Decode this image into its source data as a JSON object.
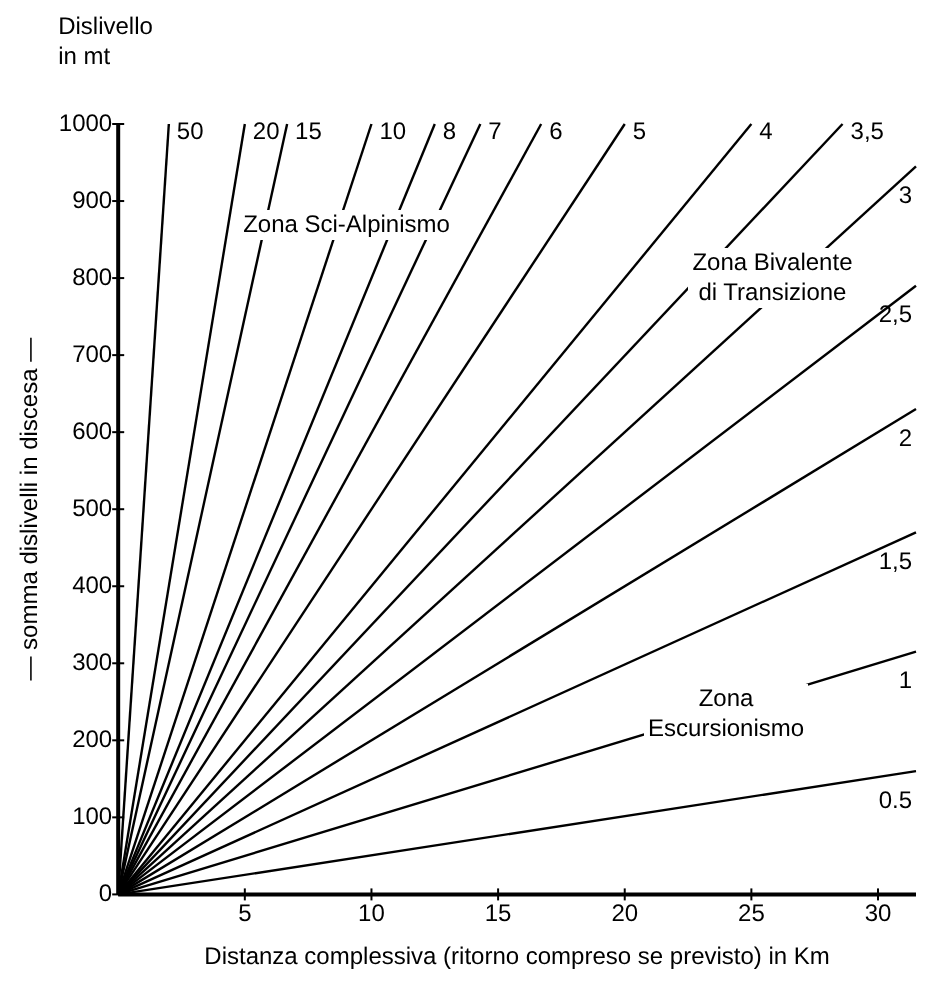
{
  "chart_data": {
    "type": "line",
    "xlabel": "Distanza complessiva (ritorno compreso se previsto) in Km",
    "ylabel": "— somma dislivelli in discesa —",
    "xlim": [
      0,
      31.5
    ],
    "ylim": [
      0,
      1000
    ],
    "xticks": [
      5,
      10,
      15,
      20,
      25,
      30
    ],
    "yticks": [
      0,
      100,
      200,
      300,
      400,
      500,
      600,
      700,
      800,
      900,
      1000
    ],
    "grid": false,
    "legend": false,
    "marker": "none",
    "line_style": "solid",
    "annotations": [
      "Dislivello\nin mt",
      {
        "text": "Zona Sci-Alpinismo",
        "x": 9,
        "y": 870
      },
      "Zona Bivalente\ndi Transizione",
      {
        "text": "Zona\nEscursionismo",
        "x": 24,
        "y": 235
      }
    ],
    "series": [
      {
        "name": "50",
        "color": "#000000",
        "x": [
          0,
          2
        ],
        "values": [
          0,
          1000
        ]
      },
      {
        "name": "20",
        "color": "#000000",
        "x": [
          0,
          5
        ],
        "values": [
          0,
          1000
        ]
      },
      {
        "name": "15",
        "color": "#000000",
        "x": [
          0,
          6.67
        ],
        "values": [
          0,
          1000
        ]
      },
      {
        "name": "10",
        "color": "#000000",
        "x": [
          0,
          10
        ],
        "values": [
          0,
          1000
        ]
      },
      {
        "name": "8",
        "color": "#000000",
        "x": [
          0,
          12.5
        ],
        "values": [
          0,
          1000
        ]
      },
      {
        "name": "7",
        "color": "#000000",
        "x": [
          0,
          14.3
        ],
        "values": [
          0,
          1000
        ]
      },
      {
        "name": "6",
        "color": "#000000",
        "x": [
          0,
          16.7
        ],
        "values": [
          0,
          1000
        ]
      },
      {
        "name": "5",
        "color": "#000000",
        "x": [
          0,
          20
        ],
        "values": [
          0,
          1000
        ]
      },
      {
        "name": "4",
        "color": "#000000",
        "x": [
          0,
          25
        ],
        "values": [
          0,
          1000
        ]
      },
      {
        "name": "3,5",
        "color": "#000000",
        "x": [
          0,
          28.6
        ],
        "values": [
          0,
          1000
        ]
      },
      {
        "name": "3",
        "color": "#000000",
        "x": [
          0,
          31.5
        ],
        "values": [
          0,
          945
        ]
      },
      {
        "name": "2,5",
        "color": "#000000",
        "x": [
          0,
          31.5
        ],
        "values": [
          0,
          790
        ]
      },
      {
        "name": "2",
        "color": "#000000",
        "x": [
          0,
          31.5
        ],
        "values": [
          0,
          630
        ]
      },
      {
        "name": "1,5",
        "color": "#000000",
        "x": [
          0,
          31.5
        ],
        "values": [
          0,
          470
        ]
      },
      {
        "name": "1",
        "color": "#000000",
        "x": [
          0,
          31.5
        ],
        "values": [
          0,
          315
        ]
      },
      {
        "name": "0.5",
        "color": "#000000",
        "x": [
          0,
          31.5
        ],
        "values": [
          0,
          160
        ]
      }
    ]
  }
}
